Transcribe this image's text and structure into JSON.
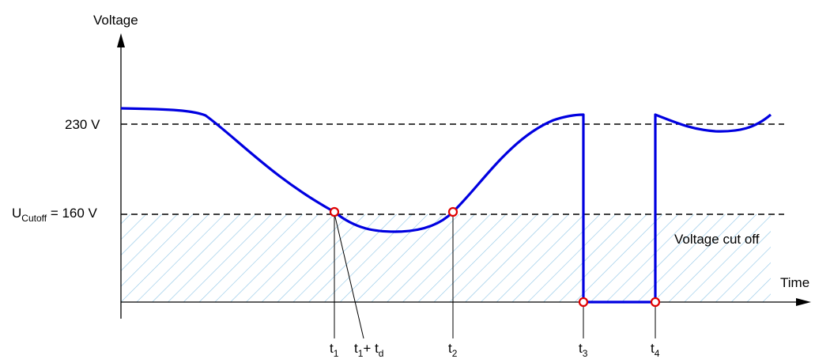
{
  "axes": {
    "y_label": "Voltage",
    "x_label": "Time"
  },
  "levels": {
    "nominal": {
      "value_text": "230 V"
    },
    "cutoff": {
      "main": "U",
      "sub": "Cutoff",
      "value_text": " = 160 V"
    }
  },
  "region": {
    "label": "Voltage cut off"
  },
  "time_marks": {
    "t1": {
      "main": "t",
      "sub": "1"
    },
    "t1_td": {
      "main1": "t",
      "sub1": "1",
      "plus": "+ t",
      "sub2": "d"
    },
    "t2": {
      "main": "t",
      "sub": "2"
    },
    "t3": {
      "main": "t",
      "sub": "3"
    },
    "t4": {
      "main": "t",
      "sub": "4"
    }
  },
  "colors": {
    "curve": "#0000e0",
    "marker": "#e00000",
    "hatch": "#8cc4e6",
    "axis": "#000000"
  }
}
